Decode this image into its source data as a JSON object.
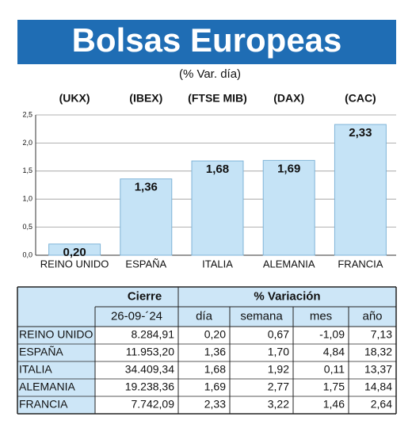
{
  "chart_data": {
    "type": "bar",
    "title": "Bolsas Europeas",
    "subtitle": "(% Var. día)",
    "categories": [
      "REINO UNIDO",
      "ESPAÑA",
      "ITALIA",
      "ALEMANIA",
      "FRANCIA"
    ],
    "index_labels": [
      "(UKX)",
      "(IBEX)",
      "(FTSE MIB)",
      "(DAX)",
      "(CAC)"
    ],
    "values": [
      0.2,
      1.36,
      1.68,
      1.69,
      2.33
    ],
    "value_labels": [
      "0,20",
      "1,36",
      "1,68",
      "1,69",
      "2,33"
    ],
    "color": "#c5e3f6",
    "ylim": [
      0,
      2.5
    ],
    "yticks": [
      {
        "value": 0,
        "label": "0,0"
      },
      {
        "value": 0.5,
        "label": "0,5"
      },
      {
        "value": 1,
        "label": "1,0"
      },
      {
        "value": 1.5,
        "label": "1,5"
      },
      {
        "value": 2,
        "label": "2,0"
      },
      {
        "value": 2.5,
        "label": "2,5"
      }
    ],
    "grid": true
  },
  "table": {
    "group_headers": [
      "Cierre",
      "% Variación"
    ],
    "columns": [
      "26-09-´24",
      "día",
      "semana",
      "mes",
      "año"
    ],
    "rows": [
      [
        "REINO UNIDO",
        "8.284,91",
        "0,20",
        "0,67",
        "-1,09",
        "7,13"
      ],
      [
        "ESPAÑA",
        "11.953,20",
        "1,36",
        "1,70",
        "4,84",
        "18,32"
      ],
      [
        "ITALIA",
        "34.409,34",
        "1,68",
        "1,92",
        "0,11",
        "13,37"
      ],
      [
        "ALEMANIA",
        "19.238,36",
        "1,69",
        "2,77",
        "1,75",
        "14,84"
      ],
      [
        "FRANCIA",
        "7.742,09",
        "2,33",
        "3,22",
        "1,46",
        "2,64"
      ]
    ]
  }
}
